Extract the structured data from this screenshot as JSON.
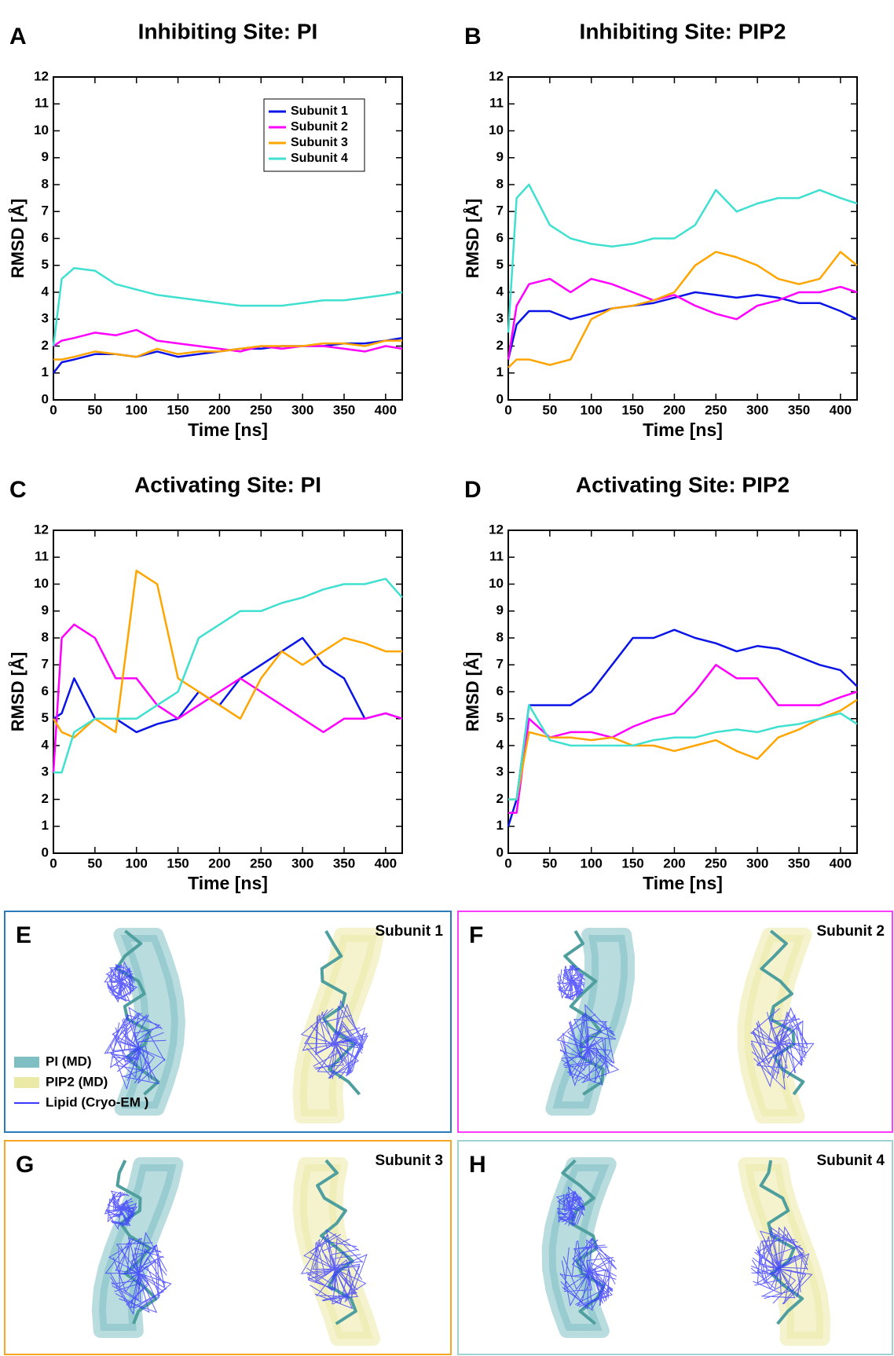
{
  "chart_data": [
    {
      "type": "line",
      "panel": "A",
      "title": "Inhibiting Site: PI",
      "x_label": "Time [ns]",
      "y_label": "RMSD [Å]",
      "x": [
        0,
        10,
        25,
        50,
        75,
        100,
        125,
        150,
        175,
        200,
        225,
        250,
        275,
        300,
        325,
        350,
        375,
        400,
        420
      ],
      "xlim": [
        0,
        420
      ],
      "xticks": [
        0,
        50,
        100,
        150,
        200,
        250,
        300,
        350,
        400
      ],
      "ylim": [
        0,
        12
      ],
      "yticks": [
        0,
        1,
        2,
        3,
        4,
        5,
        6,
        7,
        8,
        9,
        10,
        11,
        12
      ],
      "legend": "upper right",
      "series": [
        {
          "name": "Subunit 1",
          "color": "#0a14e6",
          "values": [
            1,
            1.4,
            1.5,
            1.7,
            1.7,
            1.6,
            1.8,
            1.6,
            1.7,
            1.8,
            1.9,
            1.9,
            2.0,
            2.0,
            2.0,
            2.1,
            2.1,
            2.2,
            2.3
          ]
        },
        {
          "name": "Subunit 2",
          "color": "#ff00ff",
          "values": [
            2,
            2.2,
            2.3,
            2.5,
            2.4,
            2.6,
            2.2,
            2.1,
            2.0,
            1.9,
            1.8,
            2.0,
            1.9,
            2.0,
            2.0,
            1.9,
            1.8,
            2.0,
            1.9
          ]
        },
        {
          "name": "Subunit 3",
          "color": "#ffa500",
          "values": [
            1.5,
            1.5,
            1.6,
            1.8,
            1.7,
            1.6,
            1.9,
            1.7,
            1.8,
            1.8,
            1.9,
            2.0,
            2.0,
            2.0,
            2.1,
            2.1,
            2.0,
            2.2,
            2.2
          ]
        },
        {
          "name": "Subunit 4",
          "color": "#40e0d0",
          "values": [
            2,
            4.5,
            4.9,
            4.8,
            4.3,
            4.1,
            3.9,
            3.8,
            3.7,
            3.6,
            3.5,
            3.5,
            3.5,
            3.6,
            3.7,
            3.7,
            3.8,
            3.9,
            4.0
          ]
        }
      ]
    },
    {
      "type": "line",
      "panel": "B",
      "title": "Inhibiting Site: PIP2",
      "x_label": "Time [ns]",
      "y_label": "RMSD [Å]",
      "x": [
        0,
        10,
        25,
        50,
        75,
        100,
        125,
        150,
        175,
        200,
        225,
        250,
        275,
        300,
        325,
        350,
        375,
        400,
        420
      ],
      "xlim": [
        0,
        420
      ],
      "xticks": [
        0,
        50,
        100,
        150,
        200,
        250,
        300,
        350,
        400
      ],
      "ylim": [
        0,
        12
      ],
      "yticks": [
        0,
        1,
        2,
        3,
        4,
        5,
        6,
        7,
        8,
        9,
        10,
        11,
        12
      ],
      "series": [
        {
          "color": "#0a14e6",
          "values": [
            1.5,
            2.8,
            3.3,
            3.3,
            3.0,
            3.2,
            3.4,
            3.5,
            3.6,
            3.8,
            4.0,
            3.9,
            3.8,
            3.9,
            3.8,
            3.6,
            3.6,
            3.3,
            3.0
          ]
        },
        {
          "color": "#ff00ff",
          "values": [
            1.5,
            3.5,
            4.3,
            4.5,
            4.0,
            4.5,
            4.3,
            4.0,
            3.7,
            3.9,
            3.5,
            3.2,
            3.0,
            3.5,
            3.7,
            4.0,
            4.0,
            4.2,
            4.0
          ]
        },
        {
          "color": "#ffa500",
          "values": [
            1.2,
            1.5,
            1.5,
            1.3,
            1.5,
            3.0,
            3.4,
            3.5,
            3.7,
            4.0,
            5.0,
            5.5,
            5.3,
            5.0,
            4.5,
            4.3,
            4.5,
            5.5,
            5.0
          ]
        },
        {
          "color": "#40e0d0",
          "values": [
            2.5,
            7.5,
            8.0,
            6.5,
            6.0,
            5.8,
            5.7,
            5.8,
            6.0,
            6.0,
            6.5,
            7.8,
            7.0,
            7.3,
            7.5,
            7.5,
            7.8,
            7.5,
            7.3
          ]
        }
      ]
    },
    {
      "type": "line",
      "panel": "C",
      "title": "Activating Site: PI",
      "x_label": "Time [ns]",
      "y_label": "RMSD [Å]",
      "x": [
        0,
        10,
        25,
        50,
        75,
        100,
        125,
        150,
        175,
        200,
        225,
        250,
        275,
        300,
        325,
        350,
        375,
        400,
        420
      ],
      "xlim": [
        0,
        420
      ],
      "xticks": [
        0,
        50,
        100,
        150,
        200,
        250,
        300,
        350,
        400
      ],
      "ylim": [
        0,
        12
      ],
      "yticks": [
        0,
        1,
        2,
        3,
        4,
        5,
        6,
        7,
        8,
        9,
        10,
        11,
        12
      ],
      "series": [
        {
          "color": "#0a14e6",
          "values": [
            5,
            5.2,
            6.5,
            5,
            5,
            4.5,
            4.8,
            5.0,
            6,
            5.5,
            6.5,
            7,
            7.5,
            8.0,
            7,
            6.5,
            5,
            5.2,
            5.0
          ]
        },
        {
          "color": "#ff00ff",
          "values": [
            3,
            8,
            8.5,
            8,
            6.5,
            6.5,
            5.5,
            5.0,
            5.5,
            6.0,
            6.5,
            6.0,
            5.5,
            5.0,
            4.5,
            5.0,
            5.0,
            5.2,
            5.0
          ]
        },
        {
          "color": "#ffa500",
          "values": [
            5,
            4.5,
            4.3,
            5,
            4.5,
            10.5,
            10,
            6.5,
            6,
            5.5,
            5.0,
            6.5,
            7.5,
            7,
            7.5,
            8,
            7.8,
            7.5,
            7.5
          ]
        },
        {
          "color": "#40e0d0",
          "values": [
            3,
            3,
            4.5,
            5,
            5,
            5,
            5.5,
            6.0,
            8.0,
            8.5,
            9.0,
            9.0,
            9.3,
            9.5,
            9.8,
            10,
            10,
            10.2,
            9.5
          ]
        }
      ]
    },
    {
      "type": "line",
      "panel": "D",
      "title": "Activating Site: PIP2",
      "x_label": "Time [ns]",
      "y_label": "RMSD [Å]",
      "x": [
        0,
        10,
        25,
        50,
        75,
        100,
        125,
        150,
        175,
        200,
        225,
        250,
        275,
        300,
        325,
        350,
        375,
        400,
        420
      ],
      "xlim": [
        0,
        420
      ],
      "xticks": [
        0,
        50,
        100,
        150,
        200,
        250,
        300,
        350,
        400
      ],
      "ylim": [
        0,
        12
      ],
      "yticks": [
        0,
        1,
        2,
        3,
        4,
        5,
        6,
        7,
        8,
        9,
        10,
        11,
        12
      ],
      "series": [
        {
          "color": "#0a14e6",
          "values": [
            1,
            2,
            5.5,
            5.5,
            5.5,
            6.0,
            7.0,
            8.0,
            8.0,
            8.3,
            8.0,
            7.8,
            7.5,
            7.7,
            7.6,
            7.3,
            7.0,
            6.8,
            6.2
          ]
        },
        {
          "color": "#ff00ff",
          "values": [
            1.5,
            1.5,
            5.0,
            4.3,
            4.5,
            4.5,
            4.3,
            4.7,
            5.0,
            5.2,
            6.0,
            7.0,
            6.5,
            6.5,
            5.5,
            5.5,
            5.5,
            5.8,
            6.0
          ]
        },
        {
          "color": "#ffa500",
          "values": [
            2,
            2,
            4.5,
            4.3,
            4.3,
            4.2,
            4.3,
            4.0,
            4.0,
            3.8,
            4.0,
            4.2,
            3.8,
            3.5,
            4.3,
            4.6,
            5.0,
            5.3,
            5.7
          ]
        },
        {
          "color": "#40e0d0",
          "values": [
            2,
            2,
            5.5,
            4.2,
            4.0,
            4.0,
            4.0,
            4.0,
            4.2,
            4.3,
            4.3,
            4.5,
            4.6,
            4.5,
            4.7,
            4.8,
            5.0,
            5.2,
            4.8
          ]
        }
      ]
    }
  ],
  "structure_panels": [
    {
      "panel": "E",
      "title": "Subunit 1",
      "border_color": "#2b7bba"
    },
    {
      "panel": "F",
      "title": "Subunit 2",
      "border_color": "#ff3cff"
    },
    {
      "panel": "G",
      "title": "Subunit 3",
      "border_color": "#f5a623"
    },
    {
      "panel": "H",
      "title": "Subunit 4",
      "border_color": "#9fd3d3"
    }
  ],
  "structure_legend": [
    {
      "label": "PI (MD)",
      "color": "#7fbfc4"
    },
    {
      "label": "PIP2 (MD)",
      "color": "#ebe9a6"
    },
    {
      "label": "Lipid (Cryo-EM )",
      "color": "#3a3aff"
    }
  ]
}
